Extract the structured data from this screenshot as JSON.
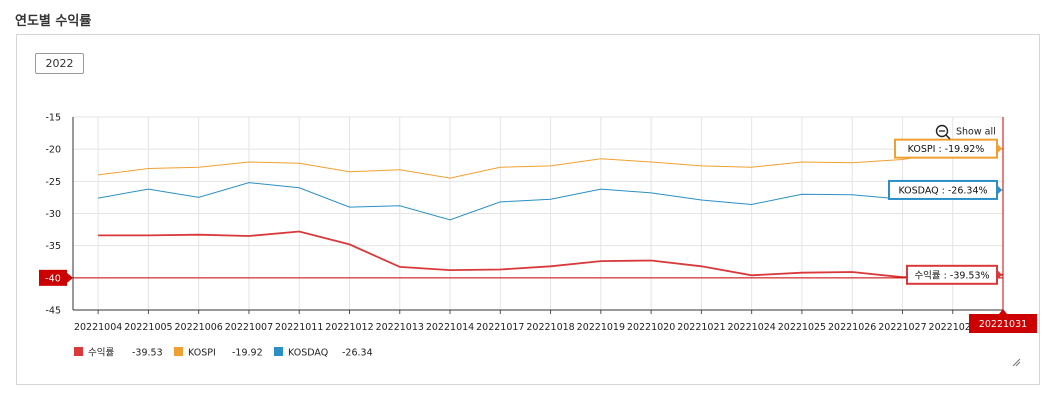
{
  "header": {
    "title": "연도별 수익률"
  },
  "year_button": {
    "label": "2022"
  },
  "show_all": {
    "label": "Show all",
    "icon": "zoom-out-icon"
  },
  "crosshair": {
    "x_label": "20221031",
    "y_label": "-40"
  },
  "colors": {
    "return": "#d9393b",
    "kospi": "#f0a030",
    "kosdaq": "#2b8fc5",
    "grid": "#e4e4e4",
    "accent": "#cc0000"
  },
  "chart_data": {
    "type": "line",
    "title": "",
    "xlabel": "",
    "ylabel": "",
    "ylim": [
      -45,
      -15
    ],
    "yticks": [
      -15,
      -20,
      -25,
      -30,
      -35,
      -40,
      -45
    ],
    "grid": true,
    "legend_position": "bottom-left",
    "categories": [
      "20221004",
      "20221005",
      "20221006",
      "20221007",
      "20221011",
      "20221012",
      "20221013",
      "20221014",
      "20221017",
      "20221018",
      "20221019",
      "20221020",
      "20221021",
      "20221024",
      "20221025",
      "20221026",
      "20221027",
      "20221028",
      "20221031"
    ],
    "series": [
      {
        "key": "return",
        "name": "수익률",
        "values": [
          -33.4,
          -33.4,
          -33.3,
          -33.5,
          -32.8,
          -34.8,
          -38.3,
          -38.8,
          -38.7,
          -38.2,
          -37.4,
          -37.3,
          -38.2,
          -39.6,
          -39.2,
          -39.1,
          -39.9,
          -39.8,
          -39.53
        ],
        "legend_value": "-39.53",
        "tooltip": "수익률 : -39.53%"
      },
      {
        "key": "kospi",
        "name": "KOSPI",
        "values": [
          -24.0,
          -23.0,
          -22.8,
          -22.0,
          -22.2,
          -23.5,
          -23.2,
          -24.5,
          -22.8,
          -22.6,
          -21.5,
          -22.0,
          -22.6,
          -22.8,
          -22.0,
          -22.1,
          -21.6,
          -20.3,
          -19.92
        ],
        "legend_value": "-19.92",
        "tooltip": "KOSPI : -19.92%"
      },
      {
        "key": "kosdaq",
        "name": "KOSDAQ",
        "values": [
          -27.6,
          -26.2,
          -27.5,
          -25.2,
          -26.0,
          -29.0,
          -28.8,
          -31.0,
          -28.2,
          -27.8,
          -26.2,
          -26.8,
          -27.9,
          -28.6,
          -27.0,
          -27.1,
          -27.8,
          -26.2,
          -26.34
        ],
        "legend_value": "-26.34",
        "tooltip": "KOSDAQ : -26.34%"
      }
    ]
  }
}
